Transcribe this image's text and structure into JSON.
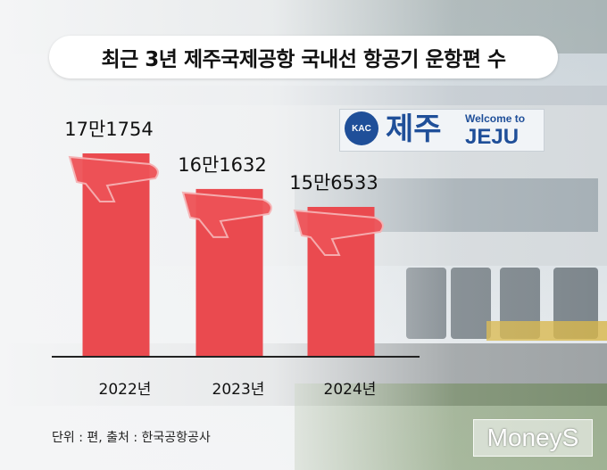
{
  "title": "최근 3년 제주국제공항 국내선 항공기 운항편 수",
  "sign": {
    "logo": "KAC",
    "korean": "제주",
    "welcome": "Welcome to",
    "english": "JEJU"
  },
  "source_note": "단위 : 편, 출처 : 한국공항공사",
  "brand_logo": "MoneyS",
  "colors": {
    "bar": "#ea4a4f",
    "plane": "#ee5257",
    "text": "#111111"
  },
  "chart_data": {
    "type": "bar",
    "title": "최근 3년 제주국제공항 국내선 항공기 운항편 수",
    "categories": [
      "2022년",
      "2023년",
      "2024년"
    ],
    "values": [
      171754,
      161632,
      156533
    ],
    "data_labels": [
      "17만1754",
      "16만1632",
      "15만6533"
    ],
    "unit": "편",
    "xlabel": "",
    "ylabel": "",
    "ylim": [
      0,
      180000
    ],
    "grid": false,
    "legend": "none"
  }
}
